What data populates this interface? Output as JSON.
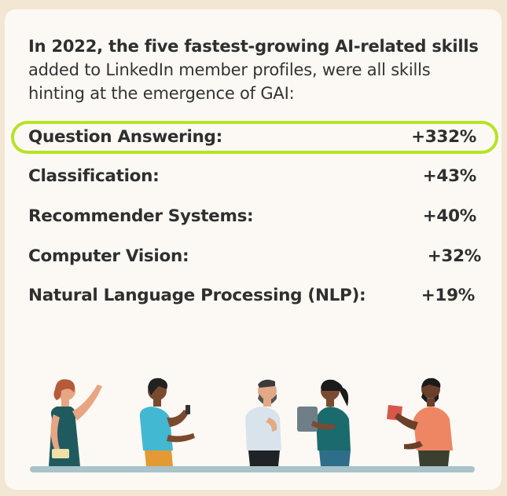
{
  "intro": {
    "bold": "In 2022, the five fastest-growing AI-related skills",
    "rest": " added to LinkedIn member profiles, were all skills hinting at the emergence of GAI:"
  },
  "skills": [
    {
      "label": "Question Answering:",
      "value": "+332%",
      "highlighted": true
    },
    {
      "label": "Classification:",
      "value": "+43%"
    },
    {
      "label": "Recommender Systems:",
      "value": "+40%"
    },
    {
      "label": "Computer Vision:",
      "value": "+32%"
    },
    {
      "label": "Natural Language Processing (NLP):",
      "value": "+19%"
    }
  ],
  "colors": {
    "highlight": "#b6e325",
    "card": "#fcf9f4",
    "background": "#f3e6d3"
  }
}
